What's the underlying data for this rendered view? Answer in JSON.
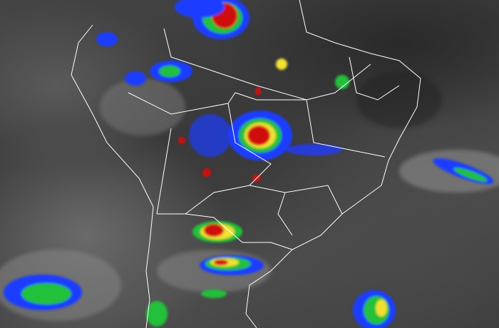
{
  "image": {
    "palette": {
      "background_gray": "#444444",
      "borders": "#ffffff",
      "cloud_blue": "#1e3cff",
      "cloud_green": "#22c03a",
      "cloud_yellow": "#f0e030",
      "cloud_red": "#d01010"
    }
  }
}
